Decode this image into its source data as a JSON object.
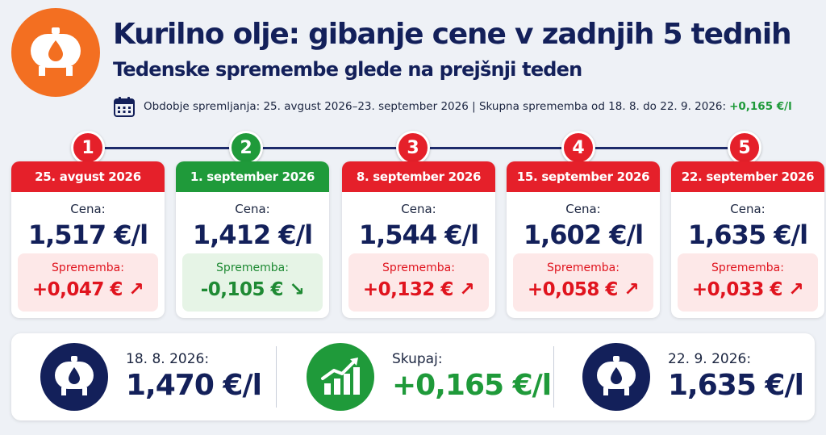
{
  "header": {
    "title": "Kurilno olje: gibanje cene v zadnjih 5 tednih",
    "subtitle": "Tedenske spremembe glede na prejšnji teden",
    "period_text": "Obdobje spremljanja: 25. avgust 2026–23. september 2026 | Skupna sprememba od 18. 8. do 22. 9. 2026:",
    "period_total": "+0,165 €/l",
    "icons": {
      "logo": "oil-tank-icon",
      "calendar": "calendar-icon"
    }
  },
  "weeks": [
    {
      "number": "1",
      "date": "25. avgust 2026",
      "price_label": "Cena:",
      "price": "1,517 €/l",
      "change_label": "Sprememba:",
      "change": "+0,047 €",
      "arrow": "↗",
      "trend": "up",
      "color": "#e5202a"
    },
    {
      "number": "2",
      "date": "1. september 2026",
      "price_label": "Cena:",
      "price": "1,412 €/l",
      "change_label": "Sprememba:",
      "change": "-0,105 €",
      "arrow": "↘",
      "trend": "down",
      "color": "#1f9a3a"
    },
    {
      "number": "3",
      "date": "8. september 2026",
      "price_label": "Cena:",
      "price": "1,544 €/l",
      "change_label": "Sprememba:",
      "change": "+0,132 €",
      "arrow": "↗",
      "trend": "up",
      "color": "#e5202a"
    },
    {
      "number": "4",
      "date": "15. september 2026",
      "price_label": "Cena:",
      "price": "1,602 €/l",
      "change_label": "Sprememba:",
      "change": "+0,058 €",
      "arrow": "↗",
      "trend": "up",
      "color": "#e5202a"
    },
    {
      "number": "5",
      "date": "22. september 2026",
      "price_label": "Cena:",
      "price": "1,635 €/l",
      "change_label": "Sprememba:",
      "change": "+0,033 €",
      "arrow": "↗",
      "trend": "up",
      "color": "#e5202a"
    }
  ],
  "summary": {
    "start": {
      "label": "18. 8. 2026:",
      "value": "1,470 €/l",
      "icon": "oil-tank-icon"
    },
    "total": {
      "label": "Skupaj:",
      "value": "+0,165 €/l",
      "icon": "growth-chart-icon"
    },
    "end": {
      "label": "22. 9. 2026:",
      "value": "1,635 €/l",
      "icon": "oil-tank-icon"
    }
  }
}
